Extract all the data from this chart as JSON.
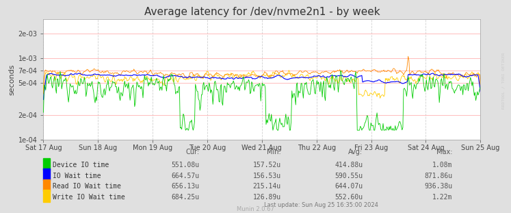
{
  "title": "Average latency for /dev/nvme2n1 - by week",
  "ylabel": "seconds",
  "background_color": "#e0e0e0",
  "plot_background_color": "#ffffff",
  "grid_h_color": "#ffaaaa",
  "grid_v_color": "#cccccc",
  "title_fontsize": 11,
  "tick_fontsize": 7,
  "ylabel_fontsize": 8,
  "yticks": [
    0.0001,
    0.0002,
    0.0005,
    0.0007,
    0.001,
    0.002
  ],
  "ytick_labels": [
    "1e-04",
    "2e-04",
    "5e-04",
    "7e-04",
    "1e-03",
    "2e-03"
  ],
  "xtick_labels": [
    "Sat 17 Aug",
    "Sun 18 Aug",
    "Mon 19 Aug",
    "Tue 20 Aug",
    "Wed 21 Aug",
    "Thu 22 Aug",
    "Fri 23 Aug",
    "Sat 24 Aug",
    "Sun 25 Aug"
  ],
  "series_colors": [
    "#00cc00",
    "#0000ff",
    "#ff8800",
    "#ffcc00"
  ],
  "series_names": [
    "Device IO time",
    "IO Wait time",
    "Read IO Wait time",
    "Write IO Wait time"
  ],
  "legend_cur": [
    "551.08u",
    "664.57u",
    "656.13u",
    "684.25u"
  ],
  "legend_min": [
    "157.52u",
    "156.53u",
    "215.14u",
    "126.89u"
  ],
  "legend_avg": [
    "414.88u",
    "590.55u",
    "644.07u",
    "552.60u"
  ],
  "legend_max": [
    "1.08m",
    "871.86u",
    "936.38u",
    "1.22m"
  ],
  "footer_center": "Munin 2.0.67",
  "footer_right": "Last update: Sun Aug 25 16:35:00 2024",
  "watermark": "RRDTOOL / TOBI OETIKER",
  "seed": 12345,
  "n_points": 576
}
